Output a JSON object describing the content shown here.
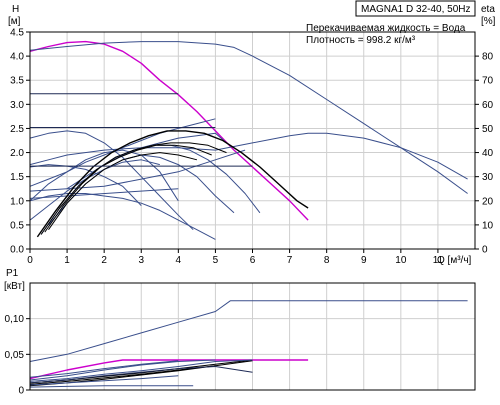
{
  "header": {
    "title_box": "MAGNA1 D 32-40, 50Hz",
    "info_liquid": "Перекачиваемая жидкость = Вода",
    "info_density": "Плотность = 998.2 кг/м³"
  },
  "colors": {
    "magenta": "#cc00cc",
    "blue": "#3a4f8c",
    "navy": "#1e2a55",
    "black": "#000000"
  },
  "chart_data": [
    {
      "type": "line",
      "name": "head_efficiency",
      "yleft_label": "H",
      "yleft_unit": "[м]",
      "yright_label": "eta",
      "yright_unit": "[%]",
      "xlabel": "Q [м³/ч]",
      "xlim": [
        0,
        12
      ],
      "ylim": [
        0,
        4.5
      ],
      "ylim_right": [
        0,
        90
      ],
      "xticks": [
        "0",
        "1",
        "2",
        "3",
        "4",
        "5",
        "6",
        "7",
        "8",
        "9",
        "10",
        "11"
      ],
      "yticks": [
        "0.0",
        "0.5",
        "1.0",
        "1.5",
        "2.0",
        "2.5",
        "3.0",
        "3.5",
        "4.0",
        "4.5"
      ],
      "yticks_right": [
        "0",
        "10",
        "20",
        "30",
        "40",
        "50",
        "60",
        "70",
        "80"
      ],
      "series": [
        {
          "color": "magenta",
          "width": 1.4,
          "x": [
            0,
            0.5,
            1,
            1.5,
            2,
            2.5,
            3,
            3.5,
            4,
            4.5,
            5,
            5.5,
            6,
            6.5,
            7,
            7.5
          ],
          "y": [
            4.1,
            4.2,
            4.28,
            4.3,
            4.25,
            4.1,
            3.85,
            3.5,
            3.2,
            2.85,
            2.45,
            2.05,
            1.7,
            1.35,
            1.0,
            0.6
          ]
        },
        {
          "color": "blue",
          "width": 1,
          "x": [
            0,
            1,
            2,
            3,
            4,
            5,
            5.5,
            6,
            7,
            8,
            9,
            10,
            11,
            11.8
          ],
          "y": [
            4.12,
            4.2,
            4.27,
            4.3,
            4.3,
            4.25,
            4.18,
            4.0,
            3.6,
            3.1,
            2.6,
            2.1,
            1.6,
            1.15
          ]
        },
        {
          "color": "blue",
          "width": 1,
          "x": [
            0,
            0.5,
            1,
            2,
            3,
            4,
            5,
            6,
            7,
            7.5,
            8,
            9,
            10,
            11,
            11.8
          ],
          "y": [
            1.75,
            1.85,
            1.95,
            2.05,
            2.1,
            2.1,
            2.05,
            2.2,
            2.35,
            2.4,
            2.4,
            2.3,
            2.1,
            1.8,
            1.45
          ]
        },
        {
          "color": "blue",
          "width": 1,
          "x": [
            0,
            0.5,
            1,
            1.5,
            2,
            2.5,
            3,
            3.5,
            4
          ],
          "y": [
            1.0,
            1.35,
            1.6,
            1.85,
            2.0,
            2.05,
            1.95,
            1.6,
            1.0
          ]
        },
        {
          "color": "blue",
          "width": 1,
          "x": [
            0,
            0.5,
            1,
            1.5,
            2,
            2.5,
            3,
            3.5,
            4,
            4.4
          ],
          "y": [
            2.3,
            2.4,
            2.45,
            2.4,
            2.2,
            1.9,
            1.5,
            1.1,
            0.7,
            0.4
          ]
        },
        {
          "color": "blue",
          "width": 1,
          "x": [
            0,
            1,
            2,
            3,
            4,
            5,
            5.8
          ],
          "y": [
            1.2,
            1.25,
            1.3,
            1.45,
            1.6,
            1.85,
            2.05
          ]
        },
        {
          "color": "blue",
          "width": 1,
          "x": [
            0,
            0.5,
            1,
            1.5,
            2,
            2.5,
            3
          ],
          "y": [
            1.7,
            1.75,
            1.72,
            1.65,
            1.5,
            1.3,
            0.9
          ]
        },
        {
          "color": "blue",
          "width": 1,
          "x": [
            0,
            0.5,
            1,
            1.5,
            2,
            2.5,
            3,
            3.5
          ],
          "y": [
            0.6,
            0.9,
            1.2,
            1.45,
            1.65,
            1.8,
            1.85,
            1.75
          ]
        },
        {
          "color": "blue",
          "width": 1,
          "x": [
            0,
            0.5,
            1,
            1.5,
            2,
            2.5,
            3,
            3.5,
            4,
            4.5,
            5
          ],
          "y": [
            1.0,
            1.1,
            1.15,
            1.15,
            1.1,
            1.05,
            0.95,
            0.8,
            0.6,
            0.4,
            0.2
          ]
        },
        {
          "color": "blue",
          "width": 1,
          "x": [
            0.3,
            0.8,
            1.3,
            1.8,
            2.3,
            2.8,
            3.3,
            3.8,
            4.3,
            4.8,
            5.3,
            5.8,
            6.2
          ],
          "y": [
            0.3,
            0.85,
            1.3,
            1.65,
            1.9,
            2.05,
            2.15,
            2.15,
            2.05,
            1.85,
            1.55,
            1.15,
            0.75
          ]
        },
        {
          "color": "blue",
          "width": 1,
          "x": [
            0.5,
            1,
            1.5,
            2,
            2.5,
            3,
            3.5,
            4,
            4.5,
            5,
            5.5
          ],
          "y": [
            0.5,
            0.95,
            1.35,
            1.65,
            1.85,
            1.95,
            1.9,
            1.75,
            1.5,
            1.1,
            0.75
          ]
        },
        {
          "color": "blue",
          "width": 1,
          "x": [
            1,
            1.5,
            2,
            2.5,
            3,
            3.5,
            4,
            4.5,
            5,
            5.3
          ],
          "y": [
            1.25,
            1.5,
            1.75,
            1.95,
            2.1,
            2.2,
            2.3,
            2.35,
            2.4,
            2.2
          ]
        },
        {
          "color": "blue",
          "width": 1,
          "x": [
            0,
            0.5,
            1,
            1.5,
            2,
            2.5,
            3,
            3.5,
            4,
            4.5,
            5
          ],
          "y": [
            1.3,
            1.45,
            1.6,
            1.8,
            1.95,
            2.1,
            2.25,
            2.4,
            2.5,
            2.6,
            2.7
          ]
        },
        {
          "color": "blue",
          "width": 1,
          "x": [
            0,
            4
          ],
          "y": [
            1.05,
            1.25
          ]
        },
        {
          "color": "black",
          "width": 1.4,
          "x": [
            0.2,
            0.7,
            1.2,
            1.7,
            2.2,
            2.7,
            3.2,
            3.7,
            4.2,
            4.7,
            5.2,
            5.7,
            6.2,
            6.7,
            7.2,
            7.5
          ],
          "y": [
            0.25,
            0.8,
            1.3,
            1.7,
            2.0,
            2.2,
            2.35,
            2.45,
            2.45,
            2.4,
            2.25,
            2.0,
            1.7,
            1.35,
            1.0,
            0.85
          ]
        },
        {
          "color": "black",
          "width": 1,
          "x": [
            0.3,
            0.8,
            1.3,
            1.8,
            2.3,
            2.8,
            3.3,
            3.8,
            4.3,
            4.8,
            5.3
          ],
          "y": [
            0.3,
            0.85,
            1.3,
            1.65,
            1.9,
            2.05,
            2.15,
            2.2,
            2.2,
            2.15,
            2.0
          ]
        },
        {
          "color": "black",
          "width": 1,
          "x": [
            0.4,
            0.9,
            1.4,
            1.9,
            2.4,
            2.9,
            3.4,
            3.9,
            4.4,
            4.9
          ],
          "y": [
            0.35,
            0.9,
            1.35,
            1.7,
            1.9,
            2.05,
            2.15,
            2.15,
            2.1,
            1.95
          ]
        },
        {
          "color": "black",
          "width": 1,
          "x": [
            0.5,
            1,
            1.5,
            2,
            2.5,
            3,
            3.5,
            4,
            4.5
          ],
          "y": [
            0.4,
            0.95,
            1.35,
            1.65,
            1.85,
            1.95,
            2.0,
            1.95,
            1.85
          ]
        },
        {
          "color": "navy",
          "width": 1,
          "x": [
            0,
            4
          ],
          "y": [
            3.22,
            3.22
          ]
        },
        {
          "color": "navy",
          "width": 1,
          "x": [
            0,
            5
          ],
          "y": [
            2.52,
            2.52
          ]
        },
        {
          "color": "navy",
          "width": 1,
          "x": [
            0,
            6
          ],
          "y": [
            1.72,
            1.72
          ]
        }
      ]
    },
    {
      "type": "line",
      "name": "power",
      "ylabel": "P1",
      "yunit": "[кВт]",
      "xlim": [
        0,
        12
      ],
      "ylim": [
        0,
        0.15
      ],
      "yticks": [
        "0",
        "0,05",
        "0,10"
      ],
      "series": [
        {
          "color": "blue",
          "width": 1,
          "x": [
            0,
            1,
            2,
            3,
            4,
            5,
            5.4,
            6,
            7,
            8,
            9,
            10,
            11,
            11.8
          ],
          "y": [
            0.04,
            0.05,
            0.065,
            0.08,
            0.095,
            0.11,
            0.125,
            0.125,
            0.125,
            0.125,
            0.125,
            0.125,
            0.125,
            0.125
          ]
        },
        {
          "color": "magenta",
          "width": 1.4,
          "x": [
            0,
            1,
            2,
            2.5,
            3,
            4,
            5,
            6,
            7.5
          ],
          "y": [
            0.016,
            0.028,
            0.038,
            0.042,
            0.042,
            0.042,
            0.042,
            0.042,
            0.042
          ]
        },
        {
          "color": "black",
          "width": 1,
          "x": [
            0,
            1,
            2,
            3,
            4,
            5,
            6
          ],
          "y": [
            0.01,
            0.014,
            0.019,
            0.024,
            0.03,
            0.036,
            0.042
          ]
        },
        {
          "color": "black",
          "width": 1,
          "x": [
            0,
            1,
            2,
            3,
            4,
            5,
            6
          ],
          "y": [
            0.008,
            0.012,
            0.017,
            0.022,
            0.028,
            0.034,
            0.041
          ]
        },
        {
          "color": "black",
          "width": 1,
          "x": [
            0,
            1,
            2,
            3,
            4,
            5
          ],
          "y": [
            0.006,
            0.01,
            0.015,
            0.021,
            0.027,
            0.034
          ]
        },
        {
          "color": "blue",
          "width": 1,
          "x": [
            0,
            1,
            2,
            3,
            4,
            5,
            6
          ],
          "y": [
            0.012,
            0.016,
            0.022,
            0.027,
            0.033,
            0.04,
            0.042
          ]
        },
        {
          "color": "blue",
          "width": 1,
          "x": [
            0,
            1,
            2,
            3,
            4,
            5
          ],
          "y": [
            0.014,
            0.02,
            0.028,
            0.035,
            0.04,
            0.042
          ]
        },
        {
          "color": "blue",
          "width": 1,
          "x": [
            0,
            1,
            2,
            3,
            4
          ],
          "y": [
            0.018,
            0.023,
            0.03,
            0.036,
            0.041
          ]
        },
        {
          "color": "blue",
          "width": 1,
          "x": [
            0,
            1,
            2,
            3,
            4
          ],
          "y": [
            0.007,
            0.01,
            0.013,
            0.016,
            0.02
          ]
        },
        {
          "color": "blue",
          "width": 1,
          "x": [
            0,
            1,
            2,
            3,
            4.4
          ],
          "y": [
            0.004,
            0.005,
            0.006,
            0.006,
            0.006
          ]
        },
        {
          "color": "navy",
          "width": 1,
          "x": [
            0,
            1,
            2,
            3,
            4,
            5,
            6
          ],
          "y": [
            0.01,
            0.014,
            0.02,
            0.025,
            0.03,
            0.033,
            0.025
          ]
        }
      ]
    }
  ]
}
